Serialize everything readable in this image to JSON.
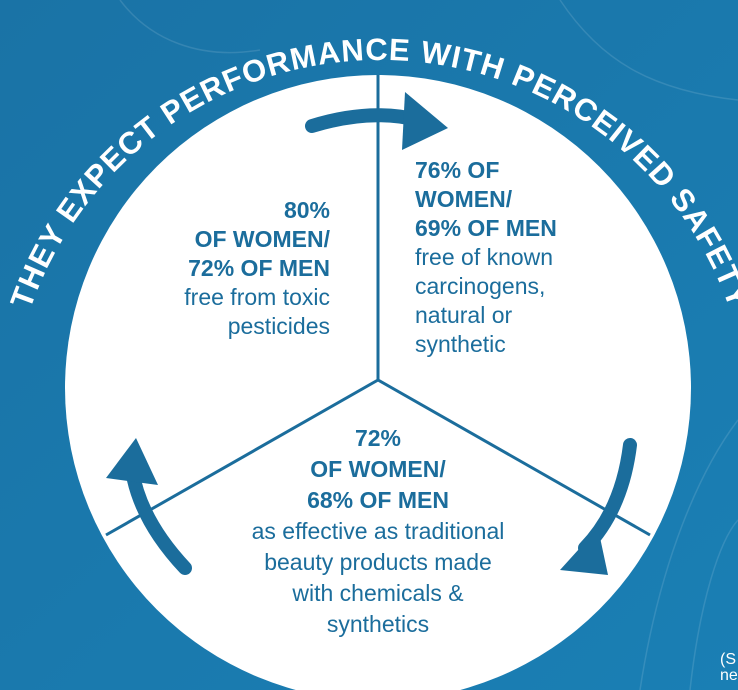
{
  "title": "THEY EXPECT PERFORMANCE WITH PERCEIVED SAFETY",
  "segments": [
    {
      "stat_lines": [
        "80%",
        "OF WOMEN/",
        "72% OF MEN"
      ],
      "description_lines": [
        "free from toxic",
        "pesticides"
      ]
    },
    {
      "stat_lines": [
        "76% OF",
        "WOMEN/",
        "69% OF MEN"
      ],
      "description_lines": [
        "free of known",
        "carcinogens,",
        "natural or",
        "synthetic"
      ]
    },
    {
      "stat_lines": [
        "72%",
        "OF WOMEN/",
        "68% OF MEN"
      ],
      "description_lines": [
        "as effective as traditional",
        "beauty products made",
        "with chemicals &",
        "synthetics"
      ]
    }
  ],
  "footnote_lines": [
    "(S",
    "ne"
  ]
}
